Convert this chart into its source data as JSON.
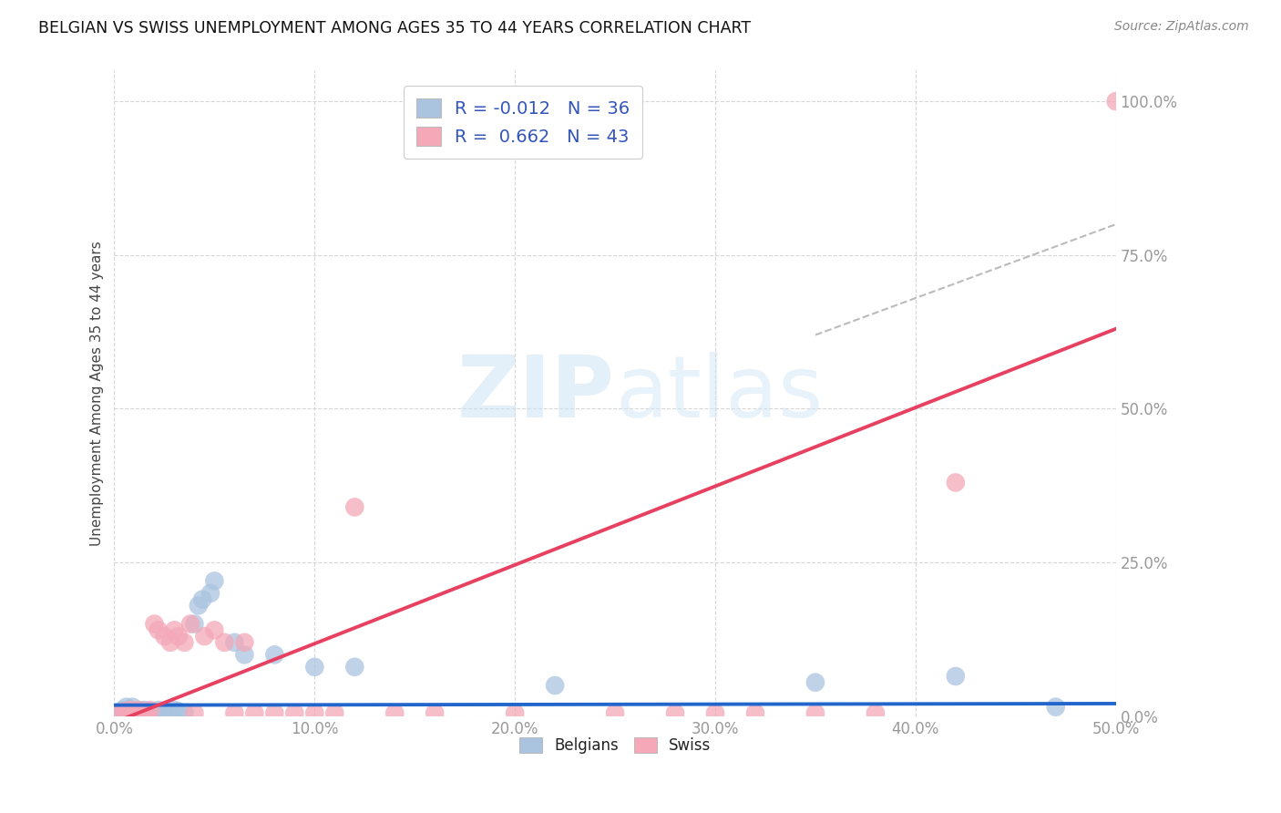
{
  "title": "BELGIAN VS SWISS UNEMPLOYMENT AMONG AGES 35 TO 44 YEARS CORRELATION CHART",
  "source": "Source: ZipAtlas.com",
  "ylabel": "Unemployment Among Ages 35 to 44 years",
  "xlim": [
    0.0,
    0.5
  ],
  "ylim": [
    0.0,
    1.05
  ],
  "xticks": [
    0.0,
    0.1,
    0.2,
    0.3,
    0.4,
    0.5
  ],
  "xticklabels": [
    "0.0%",
    "10.0%",
    "20.0%",
    "30.0%",
    "40.0%",
    "50.0%"
  ],
  "yticks": [
    0.0,
    0.25,
    0.5,
    0.75,
    1.0
  ],
  "yticklabels": [
    "0.0%",
    "25.0%",
    "50.0%",
    "75.0%",
    "100.0%"
  ],
  "grid_color": "#cccccc",
  "background_color": "#ffffff",
  "legend_R_belgians": "-0.012",
  "legend_N_belgians": "36",
  "legend_R_swiss": "0.662",
  "legend_N_swiss": "43",
  "belgian_color": "#aac4e0",
  "swiss_color": "#f4a8b8",
  "belgian_line_color": "#2266cc",
  "swiss_line_color": "#e84060",
  "belgian_line_slope": 0.005,
  "belgian_line_intercept": 0.018,
  "swiss_line_slope": 1.28,
  "swiss_line_intercept": -0.01,
  "belgian_scatter_x": [
    0.002,
    0.004,
    0.005,
    0.006,
    0.007,
    0.008,
    0.009,
    0.01,
    0.011,
    0.012,
    0.013,
    0.014,
    0.015,
    0.016,
    0.018,
    0.02,
    0.022,
    0.025,
    0.028,
    0.03,
    0.032,
    0.035,
    0.04,
    0.042,
    0.044,
    0.048,
    0.05,
    0.06,
    0.065,
    0.08,
    0.1,
    0.12,
    0.22,
    0.35,
    0.42,
    0.47
  ],
  "belgian_scatter_y": [
    0.005,
    0.01,
    0.008,
    0.015,
    0.005,
    0.01,
    0.015,
    0.008,
    0.005,
    0.01,
    0.008,
    0.005,
    0.01,
    0.005,
    0.008,
    0.005,
    0.01,
    0.008,
    0.005,
    0.01,
    0.008,
    0.005,
    0.15,
    0.18,
    0.19,
    0.2,
    0.22,
    0.12,
    0.1,
    0.1,
    0.08,
    0.08,
    0.05,
    0.055,
    0.065,
    0.015
  ],
  "swiss_scatter_x": [
    0.003,
    0.005,
    0.007,
    0.008,
    0.009,
    0.01,
    0.011,
    0.012,
    0.014,
    0.015,
    0.016,
    0.018,
    0.02,
    0.022,
    0.025,
    0.028,
    0.03,
    0.032,
    0.035,
    0.038,
    0.04,
    0.045,
    0.05,
    0.055,
    0.06,
    0.065,
    0.07,
    0.08,
    0.09,
    0.1,
    0.11,
    0.12,
    0.14,
    0.16,
    0.2,
    0.25,
    0.28,
    0.3,
    0.32,
    0.35,
    0.38,
    0.42,
    0.5
  ],
  "swiss_scatter_y": [
    0.005,
    0.008,
    0.005,
    0.01,
    0.005,
    0.008,
    0.005,
    0.01,
    0.005,
    0.008,
    0.005,
    0.01,
    0.15,
    0.14,
    0.13,
    0.12,
    0.14,
    0.13,
    0.12,
    0.15,
    0.005,
    0.13,
    0.14,
    0.12,
    0.005,
    0.12,
    0.005,
    0.005,
    0.005,
    0.005,
    0.005,
    0.34,
    0.005,
    0.005,
    0.005,
    0.005,
    0.005,
    0.005,
    0.005,
    0.005,
    0.005,
    0.38,
    1.0
  ]
}
